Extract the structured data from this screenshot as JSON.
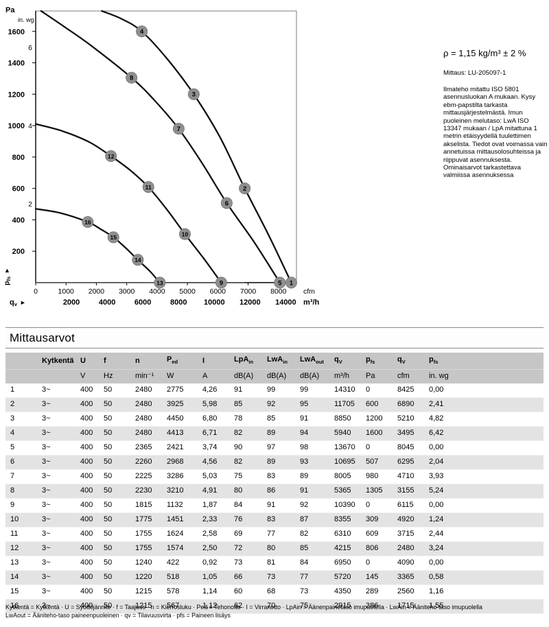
{
  "side_notes": {
    "density": "ρ = 1,15 kg/m³ ± 2 %",
    "measurement_ref": "Mittaus: LU-205097-1",
    "measurement_note": "Ilmateho mitattu ISO 5801 asennusluokan A mukaan. Kysy ebm-papstilta tarkasta mittausjärjestelmästä. Imun puoleinen melutaso: LwA ISO 13347 mukaan / LpA mitattuna 1 metrin etäisyydellä tuulettimen akselista. Tiedot ovat voimassa vain annetuissa mittausolosuhteissa ja riippuvat asennuksesta. Ominaisarvot tarkastettava valmiissa asennuksessa"
  },
  "chart_data": {
    "type": "line",
    "x_axis": {
      "flow_symbol": "q",
      "flow_symbol_sub": "v",
      "primary_unit": "cfm",
      "primary_ticks_cfm": [
        0,
        1000,
        2000,
        3000,
        4000,
        5000,
        6000,
        7000,
        8000
      ],
      "secondary_unit": "m³/h",
      "secondary_ticks_m3h": [
        2000,
        4000,
        6000,
        8000,
        10000,
        12000,
        14000
      ],
      "range_m3h": [
        0,
        14600
      ],
      "cfm_to_m3h": 1.699
    },
    "y_axis": {
      "pressure_symbol": "p",
      "pressure_symbol_sub": "fs",
      "primary_unit": "Pa",
      "primary_ticks_pa": [
        200,
        400,
        600,
        800,
        1000,
        1200,
        1400,
        1600
      ],
      "secondary_unit": "in. wg",
      "secondary_ticks_inwg": [
        2,
        4,
        6
      ],
      "inwg_to_pa": 248.84,
      "range_pa": [
        0,
        1730
      ]
    },
    "fan_curves": [
      {
        "name": "fan-curve-2480-rpm",
        "points_m3h_pa": [
          [
            3700,
            1730
          ],
          [
            4800,
            1680
          ],
          [
            5940,
            1600
          ],
          [
            7400,
            1420
          ],
          [
            8850,
            1200
          ],
          [
            10300,
            930
          ],
          [
            11705,
            600
          ],
          [
            13050,
            300
          ],
          [
            14310,
            0
          ]
        ]
      },
      {
        "name": "fan-curve-2300-rpm",
        "points_m3h_pa": [
          [
            300,
            1730
          ],
          [
            1600,
            1630
          ],
          [
            3100,
            1510
          ],
          [
            5365,
            1305
          ],
          [
            6700,
            1155
          ],
          [
            8005,
            980
          ],
          [
            9350,
            755
          ],
          [
            10695,
            507
          ],
          [
            12250,
            255
          ],
          [
            13670,
            0
          ]
        ]
      },
      {
        "name": "fan-curve-1800-rpm",
        "points_m3h_pa": [
          [
            0,
            1010
          ],
          [
            1500,
            965
          ],
          [
            3000,
            895
          ],
          [
            4215,
            806
          ],
          [
            5300,
            715
          ],
          [
            6310,
            609
          ],
          [
            7350,
            465
          ],
          [
            8355,
            309
          ],
          [
            9400,
            155
          ],
          [
            10390,
            0
          ]
        ]
      },
      {
        "name": "fan-curve-1230-rpm",
        "points_m3h_pa": [
          [
            0,
            470
          ],
          [
            1400,
            443
          ],
          [
            2915,
            386
          ],
          [
            3650,
            340
          ],
          [
            4350,
            289
          ],
          [
            5050,
            220
          ],
          [
            5720,
            145
          ],
          [
            6400,
            72
          ],
          [
            6950,
            0
          ]
        ]
      }
    ],
    "load_lines": [
      {
        "name": "load-line-1",
        "k_pa_per_m3h2": 4.534e-08,
        "q_end_m3h": 5940
      },
      {
        "name": "load-line-2",
        "k_pa_per_m3h2": 1.532e-08,
        "q_end_m3h": 8850
      },
      {
        "name": "load-line-3",
        "k_pa_per_m3h2": 4.379e-09,
        "q_end_m3h": 11705
      }
    ],
    "operating_points": [
      {
        "label": "1",
        "q_m3h": 14310,
        "p_pa": 0
      },
      {
        "label": "2",
        "q_m3h": 11705,
        "p_pa": 600
      },
      {
        "label": "3",
        "q_m3h": 8850,
        "p_pa": 1200
      },
      {
        "label": "4",
        "q_m3h": 5940,
        "p_pa": 1600
      },
      {
        "label": "5",
        "q_m3h": 13670,
        "p_pa": 0
      },
      {
        "label": "6",
        "q_m3h": 10695,
        "p_pa": 507
      },
      {
        "label": "7",
        "q_m3h": 8005,
        "p_pa": 980
      },
      {
        "label": "8",
        "q_m3h": 5365,
        "p_pa": 1305
      },
      {
        "label": "9",
        "q_m3h": 10390,
        "p_pa": 0
      },
      {
        "label": "10",
        "q_m3h": 8355,
        "p_pa": 309
      },
      {
        "label": "11",
        "q_m3h": 6310,
        "p_pa": 609
      },
      {
        "label": "12",
        "q_m3h": 4215,
        "p_pa": 806
      },
      {
        "label": "13",
        "q_m3h": 6950,
        "p_pa": 0
      },
      {
        "label": "14",
        "q_m3h": 5720,
        "p_pa": 145
      },
      {
        "label": "15",
        "q_m3h": 4350,
        "p_pa": 289
      },
      {
        "label": "16",
        "q_m3h": 2915,
        "p_pa": 386
      }
    ],
    "curve_color": "#111111",
    "load_line_color": "#555555",
    "marker_color": "#8f8f8f",
    "marker_text_color": "#ffffff"
  },
  "table": {
    "title": "Mittausarvot",
    "columns": [
      {
        "label": ""
      },
      {
        "label": "Kytkentä"
      },
      {
        "label": "U"
      },
      {
        "label": "f"
      },
      {
        "label": "n"
      },
      {
        "label": "P",
        "sub": "ed"
      },
      {
        "label": "I"
      },
      {
        "label": "LpA",
        "sub": "in"
      },
      {
        "label": "LwA",
        "sub": "in"
      },
      {
        "label": "LwA",
        "sub": "out"
      },
      {
        "label": "q",
        "sub": "V"
      },
      {
        "label": "p",
        "sub": "fs"
      },
      {
        "label": "q",
        "sub": "V"
      },
      {
        "label": "p",
        "sub": "fs"
      }
    ],
    "units": [
      "",
      "",
      "V",
      "Hz",
      "min⁻¹",
      "W",
      "A",
      "dB(A)",
      "dB(A)",
      "dB(A)",
      "m³/h",
      "Pa",
      "cfm",
      "in. wg"
    ],
    "rows": [
      {
        "no": "1",
        "values": [
          "3~",
          "400",
          "50",
          "2480",
          "2775",
          "4,26",
          "91",
          "99",
          "99",
          "14310",
          "0",
          "8425",
          "0,00"
        ]
      },
      {
        "no": "2",
        "values": [
          "3~",
          "400",
          "50",
          "2480",
          "3925",
          "5,98",
          "85",
          "92",
          "95",
          "11705",
          "600",
          "6890",
          "2,41"
        ]
      },
      {
        "no": "3",
        "values": [
          "3~",
          "400",
          "50",
          "2480",
          "4450",
          "6,80",
          "78",
          "85",
          "91",
          "8850",
          "1200",
          "5210",
          "4,82"
        ]
      },
      {
        "no": "4",
        "values": [
          "3~",
          "400",
          "50",
          "2480",
          "4413",
          "6,71",
          "82",
          "89",
          "94",
          "5940",
          "1600",
          "3495",
          "6,42"
        ]
      },
      {
        "no": "5",
        "values": [
          "3~",
          "400",
          "50",
          "2365",
          "2421",
          "3,74",
          "90",
          "97",
          "98",
          "13670",
          "0",
          "8045",
          "0,00"
        ]
      },
      {
        "no": "6",
        "values": [
          "3~",
          "400",
          "50",
          "2260",
          "2968",
          "4,56",
          "82",
          "89",
          "93",
          "10695",
          "507",
          "6295",
          "2,04"
        ]
      },
      {
        "no": "7",
        "values": [
          "3~",
          "400",
          "50",
          "2225",
          "3286",
          "5,03",
          "75",
          "83",
          "89",
          "8005",
          "980",
          "4710",
          "3,93"
        ]
      },
      {
        "no": "8",
        "values": [
          "3~",
          "400",
          "50",
          "2230",
          "3210",
          "4,91",
          "80",
          "86",
          "91",
          "5365",
          "1305",
          "3155",
          "5,24"
        ]
      },
      {
        "no": "9",
        "values": [
          "3~",
          "400",
          "50",
          "1815",
          "1132",
          "1,87",
          "84",
          "91",
          "92",
          "10390",
          "0",
          "6115",
          "0,00"
        ]
      },
      {
        "no": "10",
        "values": [
          "3~",
          "400",
          "50",
          "1775",
          "1451",
          "2,33",
          "76",
          "83",
          "87",
          "8355",
          "309",
          "4920",
          "1,24"
        ]
      },
      {
        "no": "11",
        "values": [
          "3~",
          "400",
          "50",
          "1755",
          "1624",
          "2,58",
          "69",
          "77",
          "82",
          "6310",
          "609",
          "3715",
          "2,44"
        ]
      },
      {
        "no": "12",
        "values": [
          "3~",
          "400",
          "50",
          "1755",
          "1574",
          "2,50",
          "72",
          "80",
          "85",
          "4215",
          "806",
          "2480",
          "3,24"
        ]
      },
      {
        "no": "13",
        "values": [
          "3~",
          "400",
          "50",
          "1240",
          "422",
          "0,92",
          "73",
          "81",
          "84",
          "6950",
          "0",
          "4090",
          "0,00"
        ]
      },
      {
        "no": "14",
        "values": [
          "3~",
          "400",
          "50",
          "1220",
          "518",
          "1,05",
          "66",
          "73",
          "77",
          "5720",
          "145",
          "3365",
          "0,58"
        ]
      },
      {
        "no": "15",
        "values": [
          "3~",
          "400",
          "50",
          "1215",
          "578",
          "1,14",
          "60",
          "68",
          "73",
          "4350",
          "289",
          "2560",
          "1,16"
        ]
      },
      {
        "no": "16",
        "values": [
          "3~",
          "400",
          "50",
          "1215",
          "567",
          "1,12",
          "62",
          "70",
          "75",
          "2915",
          "386",
          "1715",
          "1,55"
        ]
      }
    ]
  },
  "footnotes": {
    "line1": "Kytkentä = Kytkentä · U = Syöttöjännite · f = Taajuus · n = Kierrosluku · Ped = Tehonotto · I = Virranotto · LpAin = Äänenpainetaso imupuolella · LwAin = Ääniteho-taso imupuolella",
    "line2": "LwAout = Ääniteho-taso paineenpuoleinen · qv = Tilavuusvirta · pfs = Paineen lisäys"
  }
}
